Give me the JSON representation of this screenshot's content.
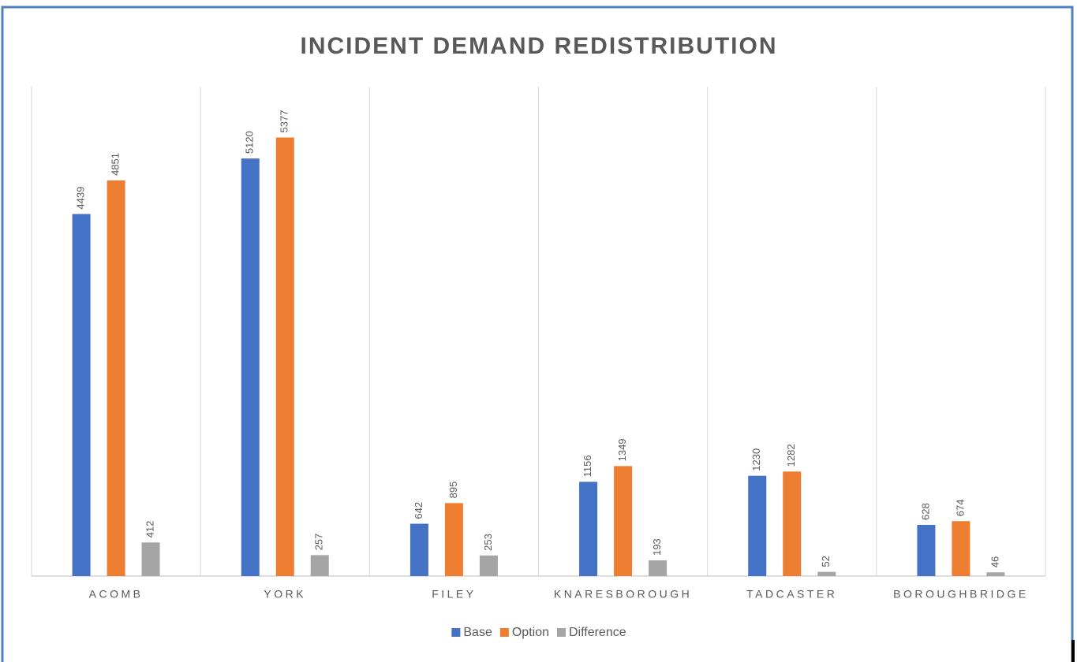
{
  "chart_data": {
    "type": "bar",
    "title": "INCIDENT DEMAND REDISTRIBUTION",
    "categories": [
      "ACOMB",
      "YORK",
      "FILEY",
      "KNARESBOROUGH",
      "TADCASTER",
      "BOROUGHBRIDGE"
    ],
    "series": [
      {
        "name": "Base",
        "color": "#4472c4",
        "values": [
          4439,
          5120,
          642,
          1156,
          1230,
          628
        ]
      },
      {
        "name": "Option",
        "color": "#ed7d31",
        "values": [
          4851,
          5377,
          895,
          1349,
          1282,
          674
        ]
      },
      {
        "name": "Difference",
        "color": "#a5a5a5",
        "values": [
          412,
          257,
          253,
          193,
          52,
          46
        ]
      }
    ],
    "ylim": [
      0,
      6000
    ],
    "legend": "bottom"
  }
}
